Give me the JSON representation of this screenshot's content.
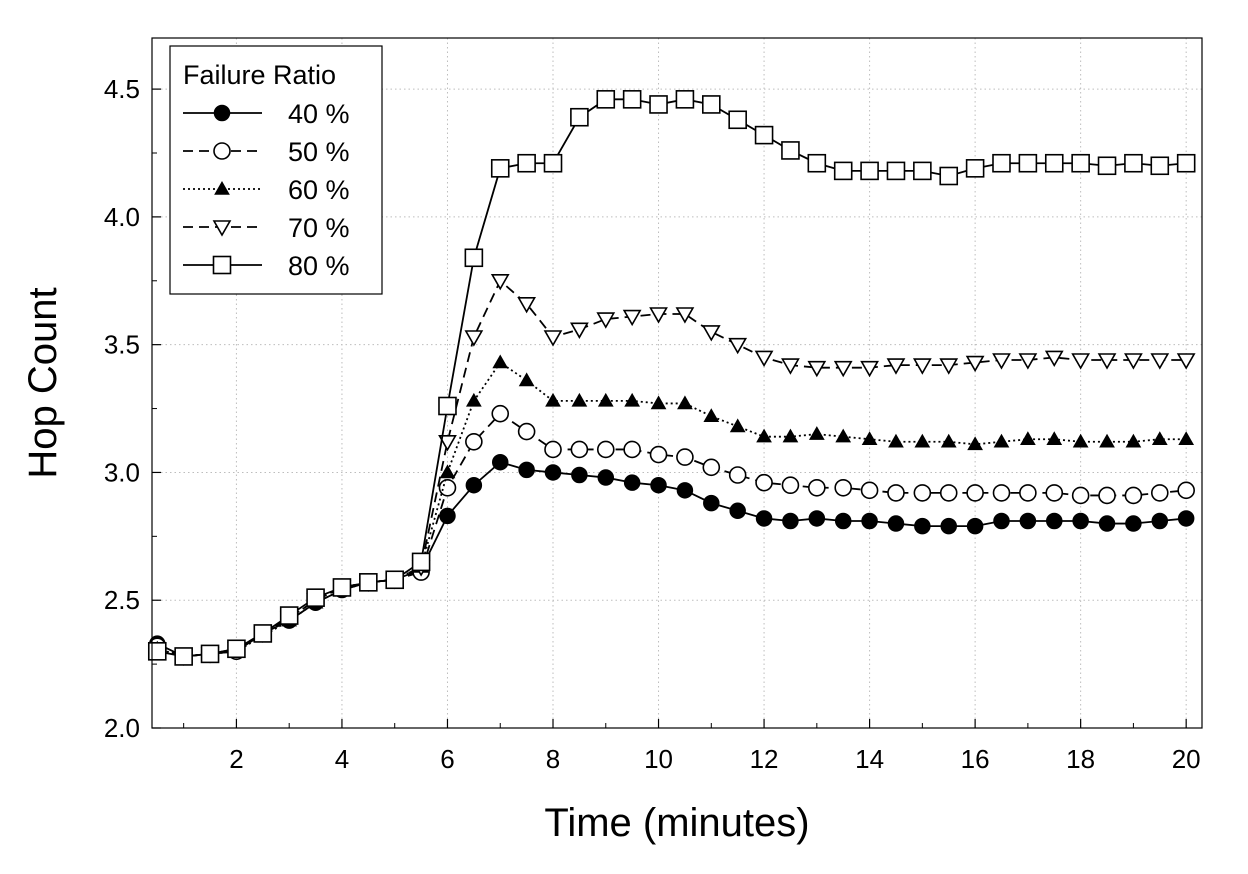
{
  "chart_data": {
    "type": "line",
    "xlabel": "Time (minutes)",
    "ylabel": "Hop Count",
    "xlim": [
      0.4,
      20.3
    ],
    "ylim": [
      2.0,
      4.7
    ],
    "x_ticks": [
      2,
      4,
      6,
      8,
      10,
      12,
      14,
      16,
      18,
      20
    ],
    "y_ticks": [
      2.0,
      2.5,
      3.0,
      3.5,
      4.0,
      4.5
    ],
    "y_tick_labels": [
      "2.0",
      "2.5",
      "3.0",
      "3.5",
      "4.0",
      "4.5"
    ],
    "grid": true,
    "legend": {
      "title": "Failure Ratio",
      "position": "top-left"
    },
    "x": [
      0.5,
      1,
      1.5,
      2,
      2.5,
      3,
      3.5,
      4,
      4.5,
      5,
      5.5,
      6,
      6.5,
      7,
      7.5,
      8,
      8.5,
      9,
      9.5,
      10,
      10.5,
      11,
      11.5,
      12,
      12.5,
      13,
      13.5,
      14,
      14.5,
      15,
      15.5,
      16,
      16.5,
      17,
      17.5,
      18,
      18.5,
      19,
      19.5,
      20
    ],
    "series": [
      {
        "name": "40 %",
        "marker": "filled-circle",
        "line": "solid",
        "values": [
          2.33,
          2.28,
          2.29,
          2.3,
          2.37,
          2.42,
          2.49,
          2.54,
          2.57,
          2.58,
          2.62,
          2.83,
          2.95,
          3.04,
          3.01,
          3.0,
          2.99,
          2.98,
          2.96,
          2.95,
          2.93,
          2.88,
          2.85,
          2.82,
          2.81,
          2.82,
          2.81,
          2.81,
          2.8,
          2.79,
          2.79,
          2.79,
          2.81,
          2.81,
          2.81,
          2.81,
          2.8,
          2.8,
          2.81,
          2.82
        ]
      },
      {
        "name": "50 %",
        "marker": "open-circle",
        "line": "dashed",
        "values": [
          2.32,
          2.28,
          2.29,
          2.3,
          2.37,
          2.43,
          2.5,
          2.55,
          2.57,
          2.58,
          2.61,
          2.94,
          3.12,
          3.23,
          3.16,
          3.09,
          3.09,
          3.09,
          3.09,
          3.07,
          3.06,
          3.02,
          2.99,
          2.96,
          2.95,
          2.94,
          2.94,
          2.93,
          2.92,
          2.92,
          2.92,
          2.92,
          2.92,
          2.92,
          2.92,
          2.91,
          2.91,
          2.91,
          2.92,
          2.93
        ]
      },
      {
        "name": "60 %",
        "marker": "filled-triangle-up",
        "line": "dotted",
        "values": [
          2.31,
          2.28,
          2.29,
          2.3,
          2.36,
          2.42,
          2.49,
          2.54,
          2.57,
          2.58,
          2.63,
          3.0,
          3.28,
          3.43,
          3.36,
          3.28,
          3.28,
          3.28,
          3.28,
          3.27,
          3.27,
          3.22,
          3.18,
          3.14,
          3.14,
          3.15,
          3.14,
          3.13,
          3.12,
          3.12,
          3.12,
          3.11,
          3.12,
          3.13,
          3.13,
          3.12,
          3.12,
          3.12,
          3.13,
          3.13
        ]
      },
      {
        "name": "70 %",
        "marker": "open-triangle-down",
        "line": "dashed",
        "values": [
          2.31,
          2.28,
          2.29,
          2.31,
          2.37,
          2.43,
          2.5,
          2.55,
          2.57,
          2.58,
          2.63,
          3.12,
          3.53,
          3.75,
          3.66,
          3.53,
          3.56,
          3.6,
          3.61,
          3.62,
          3.62,
          3.55,
          3.5,
          3.45,
          3.42,
          3.41,
          3.41,
          3.41,
          3.42,
          3.42,
          3.42,
          3.43,
          3.44,
          3.44,
          3.45,
          3.44,
          3.44,
          3.44,
          3.44,
          3.44
        ]
      },
      {
        "name": "80 %",
        "marker": "open-square",
        "line": "solid",
        "values": [
          2.3,
          2.28,
          2.29,
          2.31,
          2.37,
          2.44,
          2.51,
          2.55,
          2.57,
          2.58,
          2.65,
          3.26,
          3.84,
          4.19,
          4.21,
          4.21,
          4.39,
          4.46,
          4.46,
          4.44,
          4.46,
          4.44,
          4.38,
          4.32,
          4.26,
          4.21,
          4.18,
          4.18,
          4.18,
          4.18,
          4.16,
          4.19,
          4.21,
          4.21,
          4.21,
          4.21,
          4.2,
          4.21,
          4.2,
          4.21
        ]
      }
    ]
  }
}
